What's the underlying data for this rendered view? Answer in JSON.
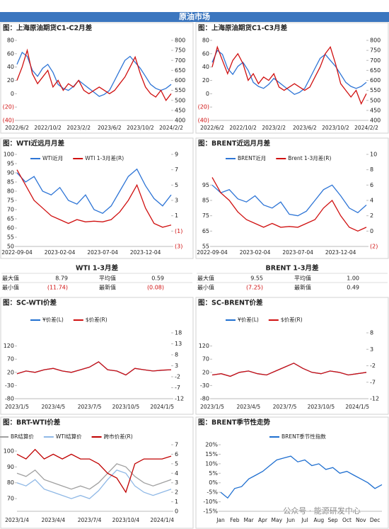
{
  "header": {
    "title": "原油市场"
  },
  "chart_data": [
    {
      "type": "line",
      "title": "图：上海原油期货C1-C2月差",
      "categories": [
        "2022/6/2",
        null,
        null,
        null,
        null,
        null,
        "2022/10/2",
        null,
        null,
        null,
        null,
        null,
        "2023/2/2",
        null,
        null,
        null,
        null,
        null,
        "2023/6/2",
        null,
        null,
        null,
        null,
        null,
        "2023/10/2",
        null,
        null,
        null,
        null,
        null,
        "2024/2/2"
      ],
      "series": [
        {
          "color": "#2e75d6",
          "axis": "y2",
          "values": [
            680,
            740,
            720,
            650,
            620,
            660,
            680,
            640,
            580,
            560,
            550,
            570,
            600,
            580,
            560,
            540,
            520,
            530,
            550,
            600,
            650,
            700,
            720,
            690,
            660,
            620,
            580,
            560,
            550,
            560,
            580
          ]
        },
        {
          "color": "#d01010",
          "values": [
            20,
            40,
            65,
            30,
            15,
            25,
            35,
            10,
            20,
            5,
            15,
            10,
            20,
            5,
            0,
            5,
            10,
            5,
            0,
            5,
            15,
            25,
            40,
            55,
            30,
            10,
            0,
            -5,
            5,
            -10,
            0
          ]
        }
      ],
      "ylim": [
        -40,
        80
      ],
      "yticks": [
        {
          "value": -40,
          "label": "(40)"
        },
        {
          "value": -20,
          "label": "(20)"
        },
        0,
        20,
        40,
        60,
        80
      ],
      "y2lim": [
        400,
        800
      ],
      "y2ticks": [
        400,
        450,
        500,
        550,
        600,
        650,
        700,
        750,
        800
      ]
    },
    {
      "type": "line",
      "title": "图：上海原油期货C1-C3月差",
      "categories": [
        "2022/6/2",
        null,
        null,
        null,
        null,
        null,
        "2022/10/2",
        null,
        null,
        null,
        null,
        null,
        "2023/2/2",
        null,
        null,
        null,
        null,
        null,
        "2023/6/2",
        null,
        null,
        null,
        null,
        null,
        "2023/10/2",
        null,
        null,
        null,
        null,
        null,
        "2024/2/2"
      ],
      "series": [
        {
          "color": "#2e75d6",
          "axis": "y2",
          "values": [
            690,
            750,
            730,
            660,
            630,
            670,
            690,
            650,
            590,
            570,
            560,
            580,
            610,
            590,
            570,
            550,
            530,
            540,
            560,
            610,
            660,
            710,
            730,
            700,
            670,
            630,
            590,
            570,
            560,
            570,
            590
          ]
        },
        {
          "color": "#d01010",
          "values": [
            40,
            70,
            50,
            30,
            50,
            60,
            45,
            20,
            30,
            15,
            25,
            20,
            30,
            10,
            5,
            10,
            15,
            10,
            5,
            10,
            25,
            40,
            60,
            70,
            45,
            15,
            5,
            -5,
            5,
            -15,
            0
          ]
        }
      ],
      "ylim": [
        -40,
        80
      ],
      "yticks": [
        {
          "value": -40,
          "label": "(40)"
        },
        {
          "value": -20,
          "label": "(20)"
        },
        0,
        20,
        40,
        60,
        80
      ],
      "y2lim": [
        400,
        800
      ],
      "y2ticks": [
        400,
        450,
        500,
        550,
        600,
        650,
        700,
        750,
        800
      ]
    },
    {
      "type": "line",
      "title": "图：WTI近远月月差",
      "categories": [
        "2022-09-04",
        null,
        null,
        null,
        null,
        "2023-02-04",
        null,
        null,
        null,
        null,
        "2023-07-04",
        null,
        null,
        null,
        null,
        "2023-12-04",
        null,
        null,
        null
      ],
      "series": [
        {
          "name": "WTI近月",
          "color": "#2e75d6",
          "values": [
            90,
            85,
            88,
            80,
            78,
            82,
            75,
            73,
            78,
            70,
            68,
            72,
            80,
            88,
            92,
            83,
            76,
            72,
            78
          ]
        },
        {
          "name": "WTI 1-3月差(R)",
          "color": "#d01010",
          "axis": "y2",
          "values": [
            7,
            5,
            3,
            2,
            1,
            0.5,
            0,
            0.5,
            0.2,
            0.3,
            0.2,
            0.5,
            1.5,
            3,
            5,
            2,
            0,
            -0.5,
            -0.2
          ]
        }
      ],
      "ylim": [
        50,
        100
      ],
      "yticks": [
        50,
        55,
        60,
        65,
        70,
        75,
        80,
        85,
        90,
        95,
        100
      ],
      "y2lim": [
        -3,
        9
      ],
      "y2ticks": [
        {
          "value": -3,
          "label": "(3)"
        },
        {
          "value": -1,
          "label": "(1)"
        },
        1,
        3,
        5,
        7,
        9
      ]
    },
    {
      "type": "line",
      "title": "图：BRENT近远月月差",
      "categories": [
        "2022-09-04",
        null,
        null,
        null,
        null,
        "2023-02-04",
        null,
        null,
        null,
        null,
        "2023-07-04",
        null,
        null,
        null,
        null,
        "2023-12-04",
        null,
        null,
        null
      ],
      "series": [
        {
          "name": "BRENT近月",
          "color": "#2e75d6",
          "values": [
            95,
            90,
            92,
            86,
            84,
            88,
            82,
            80,
            84,
            76,
            75,
            78,
            85,
            92,
            95,
            88,
            80,
            77,
            82
          ]
        },
        {
          "name": "Brent 1-3月差(R)",
          "color": "#d01010",
          "axis": "y2",
          "values": [
            7,
            5,
            4,
            2.5,
            1.5,
            1,
            0.5,
            1,
            0.5,
            0.6,
            0.5,
            1,
            1.5,
            3,
            4,
            2,
            0.5,
            0,
            0.5
          ]
        }
      ],
      "ylim": [
        55,
        115
      ],
      "yticks": [
        55,
        65,
        75,
        85,
        95
      ],
      "y2lim": [
        -2,
        10
      ],
      "y2ticks": [
        {
          "value": -2,
          "label": "(2)"
        },
        0,
        2,
        4,
        6,
        8,
        10
      ]
    },
    {
      "type": "line",
      "title": "图：SC-WTI价差",
      "categories": [
        "2023/1/5",
        null,
        null,
        null,
        "2023/4/5",
        null,
        null,
        null,
        "2023/7/5",
        null,
        null,
        null,
        "2023/10/5",
        null,
        null,
        null,
        "2024/1/5",
        null
      ],
      "series": [
        {
          "name": "¥价差(L)",
          "color": "#1f6fd0",
          "values": [
            15,
            25,
            20,
            30,
            35,
            25,
            20,
            30,
            40,
            60,
            30,
            25,
            10,
            35,
            30,
            25,
            28,
            30
          ]
        },
        {
          "name": "$价差(R)",
          "color": "#d01010",
          "axis": "y2",
          "values": [
            -0.6,
            0.6,
            0,
            1.2,
            1.8,
            0.6,
            0,
            1.2,
            2.4,
            4.8,
            1.2,
            0.6,
            -1.2,
            1.8,
            1.2,
            0.6,
            1,
            1.2
          ]
        }
      ],
      "ylim": [
        -80,
        170
      ],
      "yticks": [
        -80,
        -30,
        20,
        70,
        120
      ],
      "y2lim": [
        -12,
        18
      ],
      "y2ticks": [
        -12,
        -7,
        -2,
        3,
        8,
        13,
        18
      ]
    },
    {
      "type": "line",
      "title": "图：SC-BRENT价差",
      "categories": [
        "2023/1/5",
        null,
        null,
        null,
        "2023/4/5",
        null,
        null,
        null,
        "2023/7/5",
        null,
        null,
        null,
        "2023/10/5",
        null,
        null,
        null,
        "2024/1/5",
        null
      ],
      "series": [
        {
          "name": "¥价差(L)",
          "color": "#1f6fd0",
          "values": [
            10,
            15,
            5,
            20,
            25,
            15,
            10,
            25,
            40,
            55,
            35,
            20,
            15,
            25,
            20,
            10,
            15,
            20
          ]
        },
        {
          "name": "$价差(R)",
          "color": "#d01010",
          "axis": "y2",
          "values": [
            -4.8,
            -4.4,
            -5.2,
            -4,
            -3.6,
            -4.4,
            -4.8,
            -3.6,
            -2.4,
            -1.2,
            -2.8,
            -4,
            -4.4,
            -3.6,
            -4,
            -4.8,
            -4.4,
            -4
          ]
        }
      ],
      "ylim": [
        -80,
        170
      ],
      "yticks": [
        -80,
        -30,
        20,
        70,
        120
      ],
      "y2lim": [
        -12,
        8
      ],
      "y2ticks": [
        -12,
        -7,
        -2,
        3,
        8
      ]
    },
    {
      "type": "line",
      "title": "图：BRT-WTI价差",
      "categories": [
        "2023/1/4",
        null,
        null,
        null,
        "2023/4/4",
        null,
        null,
        null,
        "2023/7/4",
        null,
        null,
        null,
        "2023/10/4",
        null,
        null,
        null,
        "2024/1/4",
        null
      ],
      "series": [
        {
          "name": "BR结算价",
          "color": "#a0a0a0",
          "values": [
            86,
            84,
            88,
            82,
            80,
            78,
            76,
            78,
            76,
            80,
            86,
            92,
            90,
            84,
            80,
            78,
            80,
            82
          ]
        },
        {
          "name": "WTI结算价",
          "color": "#8fb8e6",
          "values": [
            80,
            78,
            82,
            76,
            74,
            72,
            70,
            72,
            70,
            75,
            82,
            88,
            86,
            78,
            74,
            72,
            74,
            76
          ]
        },
        {
          "name": "跨市价差(R)",
          "color": "#c00000",
          "axis": "y2",
          "values": [
            6,
            5.5,
            6.5,
            5.5,
            6,
            5.5,
            6,
            5.5,
            5.5,
            5,
            4,
            3.5,
            2,
            5,
            5.5,
            5.5,
            5.5,
            5.8
          ]
        }
      ],
      "ylim": [
        62,
        104
      ],
      "yticks": [
        70,
        80,
        90,
        100
      ],
      "y2lim": [
        0,
        7
      ],
      "y2ticks": [
        0,
        1,
        2,
        3,
        4,
        5,
        6,
        7
      ]
    },
    {
      "type": "line",
      "title": "图：BRENT季节性走势",
      "categories": [
        "Jan",
        null,
        "Feb",
        null,
        "Mar",
        null,
        "Apr",
        null,
        "May",
        null,
        "Jun",
        null,
        "Jul",
        null,
        "Aug",
        null,
        "Sep",
        null,
        "Oct",
        null,
        "Nov",
        null,
        "Dec",
        null
      ],
      "series": [
        {
          "name": "BRENT季节性指数",
          "color": "#1f6fd0",
          "values": [
            -5,
            -8,
            -3,
            -2,
            2,
            4,
            6,
            9,
            12,
            13,
            14,
            11,
            12,
            9,
            10,
            7,
            8,
            5,
            6,
            4,
            2,
            0,
            -3,
            -1
          ]
        }
      ],
      "ylim": [
        -15,
        20
      ],
      "yticks": [
        {
          "value": -15,
          "label": "-15%"
        },
        {
          "value": -10,
          "label": "-10%"
        },
        {
          "value": -5,
          "label": "-5%"
        },
        {
          "value": 0,
          "label": "0%"
        },
        {
          "value": 5,
          "label": "5%"
        },
        {
          "value": 10,
          "label": "10%"
        },
        {
          "value": 15,
          "label": "15%"
        },
        {
          "value": 20,
          "label": "20%"
        }
      ]
    }
  ],
  "stats": [
    {
      "title": "WTI 1-3月差",
      "rows": [
        [
          "最大值",
          "8.79",
          "平均值",
          "0.59"
        ],
        [
          "最小值",
          "(11.74)",
          "最新值",
          "(0.08)"
        ]
      ]
    },
    {
      "title": "BRENT 1-3月差",
      "rows": [
        [
          "最大值",
          "9.55",
          "平均值",
          "1.00"
        ],
        [
          "最小值",
          "(7.25)",
          "最新值",
          "0.49"
        ]
      ]
    }
  ],
  "watermark": "公众号 · 能源研发中心"
}
